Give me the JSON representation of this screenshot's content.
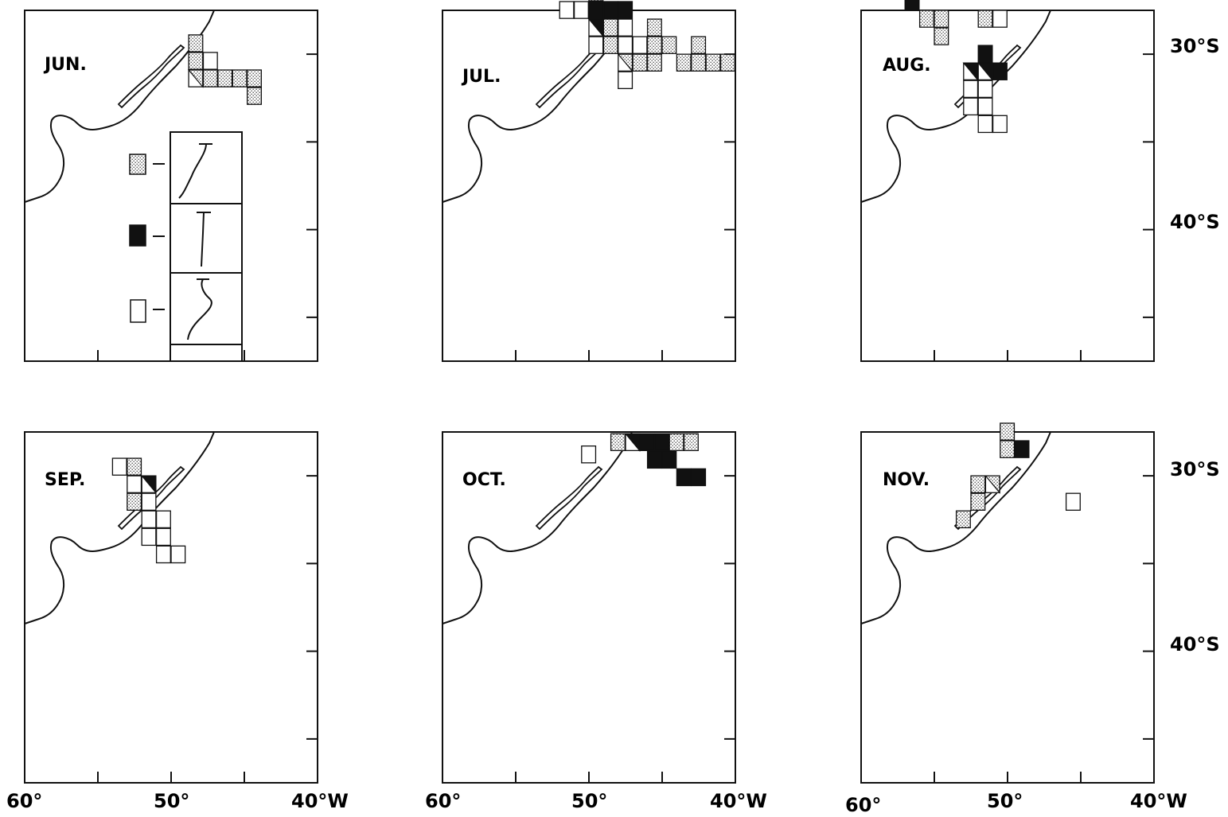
{
  "panels": [
    {
      "month": "JUN.",
      "cells": [
        [
          -44.8,
          31.9,
          "dot"
        ],
        [
          -45.8,
          30.9,
          "dot"
        ],
        [
          -44.8,
          30.9,
          "dot"
        ],
        [
          -46.8,
          30.9,
          "dot"
        ],
        [
          -47.8,
          30.9,
          "dot"
        ],
        [
          -48.8,
          30.9,
          "split-dot"
        ],
        [
          -47.8,
          29.9,
          "empty"
        ],
        [
          -48.8,
          29.9,
          "dot"
        ],
        [
          -48.8,
          28.9,
          "dot"
        ]
      ]
    },
    {
      "month": "JUL.",
      "cells": [
        [
          -48.0,
          31.0,
          "empty"
        ],
        [
          -48.0,
          30.0,
          "split-dot"
        ],
        [
          -47.0,
          30.0,
          "dot"
        ],
        [
          -46.0,
          30.0,
          "dot"
        ],
        [
          -44.0,
          30.0,
          "dot"
        ],
        [
          -43.0,
          30.0,
          "dot"
        ],
        [
          -42.0,
          30.0,
          "dot"
        ],
        [
          -41.0,
          30.0,
          "dot"
        ],
        [
          -50.0,
          29.0,
          "empty"
        ],
        [
          -49.0,
          29.0,
          "dot"
        ],
        [
          -48.0,
          29.0,
          "empty"
        ],
        [
          -47.0,
          29.0,
          "empty"
        ],
        [
          -46.0,
          29.0,
          "dot"
        ],
        [
          -45.0,
          29.0,
          "dot"
        ],
        [
          -43.0,
          29.0,
          "dot"
        ],
        [
          -50.0,
          28.0,
          "split-black"
        ],
        [
          -49.0,
          28.0,
          "dot"
        ],
        [
          -48.0,
          28.0,
          "empty"
        ],
        [
          -46.0,
          28.0,
          "dot"
        ],
        [
          -52.0,
          27.0,
          "empty"
        ],
        [
          -51.0,
          27.0,
          "empty"
        ],
        [
          -50.0,
          27.0,
          "black"
        ],
        [
          -49.0,
          27.0,
          "black"
        ],
        [
          -48.0,
          27.0,
          "black"
        ],
        [
          -50.0,
          26.0,
          "dot"
        ]
      ]
    },
    {
      "month": "AUG.",
      "cells": [
        [
          -52.0,
          33.5,
          "empty"
        ],
        [
          -51.0,
          33.5,
          "empty"
        ],
        [
          -53.0,
          32.5,
          "empty"
        ],
        [
          -52.0,
          32.5,
          "empty"
        ],
        [
          -53.0,
          31.5,
          "empty"
        ],
        [
          -52.0,
          31.5,
          "empty"
        ],
        [
          -53.0,
          30.5,
          "split-black"
        ],
        [
          -52.0,
          30.5,
          "split-black"
        ],
        [
          -51.0,
          30.5,
          "black"
        ],
        [
          -52.0,
          29.5,
          "black"
        ],
        [
          -55.0,
          28.5,
          "dot"
        ],
        [
          -55.0,
          27.5,
          "dot"
        ],
        [
          -56.0,
          27.5,
          "dot"
        ],
        [
          -52.0,
          27.5,
          "dot"
        ],
        [
          -51.0,
          27.5,
          "empty"
        ],
        [
          -57.0,
          26.5,
          "black"
        ],
        [
          -58.0,
          25.5,
          "black"
        ],
        [
          -59.0,
          25.5,
          "black"
        ],
        [
          -50.0,
          25.5,
          "dot"
        ],
        [
          -49.0,
          25.5,
          "dot"
        ],
        [
          -48.0,
          24.5,
          "dot"
        ],
        [
          -48.0,
          23.5,
          "dot"
        ],
        [
          -46.0,
          22.5,
          "dot"
        ],
        [
          -51.0,
          21.5,
          "black"
        ]
      ]
    },
    {
      "month": "SEP.",
      "cells": [
        [
          -51.0,
          34.0,
          "empty"
        ],
        [
          -50.0,
          34.0,
          "empty"
        ],
        [
          -52.0,
          33.0,
          "empty"
        ],
        [
          -51.0,
          33.0,
          "empty"
        ],
        [
          -52.0,
          32.0,
          "empty"
        ],
        [
          -51.0,
          32.0,
          "empty"
        ],
        [
          -53.0,
          31.0,
          "dot"
        ],
        [
          -52.0,
          31.0,
          "empty"
        ],
        [
          -53.0,
          30.0,
          "empty"
        ],
        [
          -52.0,
          30.0,
          "split-black"
        ],
        [
          -54.0,
          29.0,
          "empty"
        ],
        [
          -53.0,
          29.0,
          "dot"
        ]
      ]
    },
    {
      "month": "OCT.",
      "cells": [
        [
          -43.0,
          29.6,
          "black"
        ],
        [
          -44.0,
          29.6,
          "black"
        ],
        [
          -45.0,
          28.6,
          "black"
        ],
        [
          -46.0,
          28.6,
          "black"
        ],
        [
          -50.5,
          28.3,
          "empty"
        ],
        [
          -48.5,
          27.6,
          "dot"
        ],
        [
          -47.5,
          27.6,
          "split-black"
        ],
        [
          -46.5,
          27.6,
          "black"
        ],
        [
          -45.5,
          27.6,
          "black"
        ],
        [
          -44.5,
          27.6,
          "dot"
        ],
        [
          -43.5,
          27.6,
          "dot"
        ]
      ]
    },
    {
      "month": "NOV.",
      "cells": [
        [
          -53.5,
          32.0,
          "dot"
        ],
        [
          -52.5,
          31.0,
          "dot"
        ],
        [
          -52.5,
          30.0,
          "dot"
        ],
        [
          -51.5,
          30.0,
          "split-dot"
        ],
        [
          -46.0,
          31.0,
          "empty"
        ],
        [
          -50.5,
          28.0,
          "dot"
        ],
        [
          -49.5,
          28.0,
          "black"
        ],
        [
          -50.5,
          27.0,
          "dot"
        ]
      ]
    }
  ],
  "right_axis_labels": [
    "30°S",
    "40°S"
  ],
  "bottom_axis_labels": [
    "60°",
    "50°",
    "40°W"
  ],
  "legend": [
    {
      "symbol": "stippled",
      "profile": "curve"
    },
    {
      "symbol": "black",
      "profile": "vertical"
    },
    {
      "symbol": "empty",
      "profile": "inversion"
    }
  ],
  "colors": {
    "ink": "#111111",
    "dot": "#444444"
  }
}
